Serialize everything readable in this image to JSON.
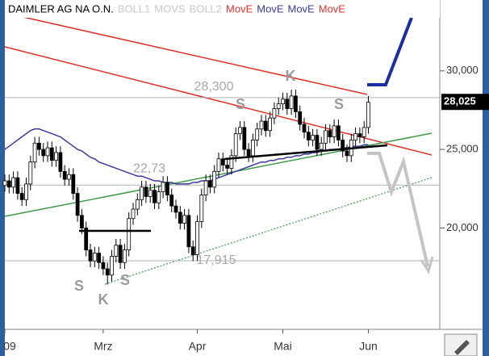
{
  "chart_data": {
    "type": "candlestick",
    "title": "DAIMLER AG NA O.N.",
    "legend": [
      {
        "name": "BOLL1",
        "color": "#c8c8c8"
      },
      {
        "name": "MOVS",
        "color": "#c8c8c8"
      },
      {
        "name": "BOLL2",
        "color": "#c8c8c8"
      },
      {
        "name": "MovE",
        "color": "#e0302a"
      },
      {
        "name": "MovE",
        "color": "#3b3b9e"
      },
      {
        "name": "MovE",
        "color": "#3b3b9e"
      },
      {
        "name": "MovE",
        "color": "#e0302a"
      }
    ],
    "categories": [
      "09",
      null,
      null,
      null,
      null,
      null,
      null,
      null,
      null,
      null,
      null,
      null,
      null,
      null,
      null,
      null,
      null,
      null,
      null,
      null,
      null,
      null,
      null,
      "Mrz",
      null,
      null,
      null,
      null,
      null,
      null,
      null,
      null,
      null,
      null,
      null,
      null,
      null,
      null,
      null,
      null,
      null,
      null,
      null,
      null,
      null,
      "Apr",
      null,
      null,
      null,
      null,
      null,
      null,
      null,
      null,
      null,
      null,
      null,
      null,
      null,
      null,
      null,
      null,
      null,
      null,
      null,
      "Mai",
      null,
      null,
      null,
      null,
      null,
      null,
      null,
      null,
      null,
      null,
      null,
      null,
      null,
      null,
      null,
      null,
      null,
      null,
      null,
      "Jun"
    ],
    "ohlc": {
      "open": [
        22.7,
        23.0,
        22.6,
        23.2,
        22.2,
        21.8,
        22.8,
        24.2,
        25.4,
        25.0,
        24.6,
        25.1,
        24.3,
        24.8,
        23.6,
        23.1,
        23.4,
        22.2,
        20.8,
        20.0,
        18.6,
        17.9,
        18.4,
        17.8,
        17.4,
        17.0,
        18.2,
        18.9,
        17.8,
        18.6,
        20.6,
        21.2,
        21.8,
        22.6,
        22.0,
        22.4,
        21.6,
        22.3,
        22.9,
        22.1,
        21.4,
        21.0,
        20.3,
        20.8,
        18.8,
        18.3,
        20.4,
        22.1,
        23.0,
        22.6,
        23.6,
        24.4,
        24.0,
        23.8,
        24.6,
        26.0,
        26.4,
        25.0,
        24.6,
        25.6,
        26.3,
        26.8,
        26.2,
        27.0,
        27.6,
        27.9,
        28.2,
        27.6,
        28.4,
        27.4,
        26.6,
        26.1,
        25.6,
        25.9,
        25.0,
        25.4,
        26.2,
        25.8,
        26.5,
        25.6,
        24.9,
        24.6,
        25.6,
        26.0,
        25.8,
        26.4
      ],
      "high": [
        23.4,
        23.4,
        23.6,
        23.6,
        22.6,
        23.2,
        24.6,
        25.8,
        25.8,
        25.4,
        25.5,
        25.5,
        25.2,
        25.2,
        24.0,
        23.8,
        23.8,
        22.6,
        21.2,
        20.4,
        19.0,
        18.8,
        18.8,
        18.2,
        17.8,
        18.6,
        19.3,
        19.3,
        19.0,
        21.0,
        21.6,
        22.2,
        23.0,
        23.0,
        22.8,
        22.8,
        22.7,
        23.3,
        23.3,
        22.5,
        21.8,
        21.4,
        21.2,
        21.2,
        19.2,
        20.8,
        22.5,
        23.4,
        23.4,
        24.0,
        24.8,
        24.8,
        24.4,
        25.0,
        26.4,
        26.8,
        26.8,
        25.4,
        26.0,
        26.7,
        27.2,
        27.2,
        27.4,
        28.0,
        28.3,
        28.6,
        28.6,
        28.8,
        28.8,
        27.8,
        27.0,
        26.5,
        26.3,
        26.3,
        25.8,
        26.6,
        26.6,
        26.9,
        26.9,
        26.0,
        25.3,
        26.0,
        26.4,
        26.4,
        26.8,
        28.4
      ],
      "low": [
        22.3,
        22.2,
        22.2,
        21.8,
        21.4,
        21.4,
        22.4,
        23.8,
        24.6,
        24.2,
        24.2,
        23.9,
        23.9,
        23.2,
        22.7,
        22.7,
        21.8,
        20.4,
        19.6,
        18.2,
        17.5,
        17.5,
        17.4,
        17.0,
        16.4,
        16.6,
        17.8,
        17.4,
        17.4,
        18.2,
        20.2,
        20.8,
        21.4,
        21.6,
        21.6,
        21.2,
        21.2,
        21.9,
        21.7,
        21.0,
        20.6,
        19.9,
        19.9,
        18.4,
        17.9,
        17.9,
        20.0,
        21.7,
        22.2,
        22.2,
        23.2,
        23.6,
        23.4,
        23.4,
        24.2,
        25.6,
        24.6,
        24.2,
        24.2,
        25.2,
        25.9,
        25.8,
        25.8,
        26.6,
        27.2,
        27.5,
        27.2,
        27.2,
        27.0,
        26.2,
        25.7,
        25.2,
        25.2,
        24.6,
        24.6,
        25.0,
        25.4,
        25.4,
        25.2,
        24.5,
        24.2,
        24.2,
        25.2,
        25.4,
        25.4,
        26.0
      ],
      "close": [
        23.0,
        22.6,
        23.2,
        22.2,
        21.8,
        22.8,
        24.2,
        25.4,
        25.0,
        24.6,
        25.1,
        24.3,
        24.8,
        23.6,
        23.1,
        23.4,
        22.2,
        20.8,
        20.0,
        18.6,
        17.9,
        18.4,
        17.8,
        17.4,
        17.0,
        18.2,
        18.9,
        17.8,
        18.6,
        20.6,
        21.2,
        21.8,
        22.6,
        22.0,
        22.4,
        21.6,
        22.3,
        22.9,
        22.1,
        21.4,
        21.0,
        20.3,
        20.8,
        18.8,
        18.3,
        20.4,
        22.1,
        23.0,
        22.6,
        23.6,
        24.4,
        24.0,
        23.8,
        24.6,
        26.0,
        26.4,
        25.0,
        24.6,
        25.6,
        26.3,
        26.8,
        26.2,
        27.0,
        27.6,
        27.9,
        28.2,
        27.6,
        28.4,
        27.4,
        26.6,
        26.1,
        25.6,
        25.9,
        25.0,
        25.4,
        26.2,
        25.8,
        26.5,
        25.6,
        24.9,
        24.6,
        25.6,
        26.0,
        25.8,
        26.4,
        28.0
      ]
    },
    "moving_average": {
      "color": "#3b3b9e",
      "values": [
        25.0,
        25.2,
        25.4,
        25.6,
        25.8,
        26.0,
        26.2,
        26.3,
        26.3,
        26.2,
        26.1,
        26.0,
        25.9,
        25.8,
        25.6,
        25.4,
        25.2,
        25.0,
        24.9,
        24.7,
        24.5,
        24.4,
        24.2,
        24.1,
        24.0,
        23.9,
        23.8,
        23.7,
        23.6,
        23.5,
        23.4,
        23.3,
        23.3,
        23.2,
        23.1,
        23.0,
        23.0,
        22.9,
        22.9,
        22.9,
        22.8,
        22.8,
        22.8,
        22.8,
        22.9,
        22.9,
        23.0,
        23.0,
        23.0,
        23.1,
        23.2,
        23.3,
        23.4,
        23.5,
        23.6,
        23.7,
        23.8,
        23.9,
        24.0,
        24.1,
        24.2,
        24.2,
        24.3,
        24.3,
        24.4,
        24.4,
        24.5,
        24.5,
        24.6,
        24.6,
        24.7,
        24.7,
        24.8,
        24.8,
        24.9,
        24.9,
        25.0,
        25.0,
        25.0,
        25.1,
        25.1,
        25.2,
        25.2,
        25.2,
        25.3,
        25.3
      ]
    },
    "ylim": [
      13.7,
      34.1
    ],
    "yticks": [
      {
        "value": 20,
        "label": "20,000"
      },
      {
        "value": 25,
        "label": "25,000"
      },
      {
        "value": 30,
        "label": "30,000"
      }
    ],
    "levels": [
      {
        "value": 28.3,
        "label": "28,300"
      },
      {
        "value": 22.73,
        "label": "22,73"
      },
      {
        "value": 17.915,
        "label": "17,915"
      }
    ],
    "last_price": {
      "value": 28.025,
      "label": "28,025"
    },
    "pattern_labels": [
      "S",
      "K",
      "S",
      "S",
      "K",
      "S"
    ]
  }
}
